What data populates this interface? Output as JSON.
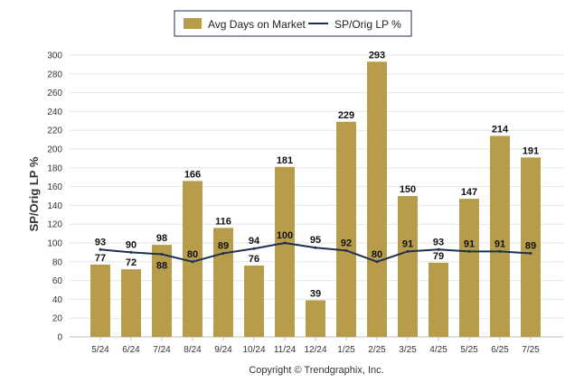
{
  "chart_data": {
    "type": "bar",
    "categories": [
      "5/24",
      "6/24",
      "7/24",
      "8/24",
      "9/24",
      "10/24",
      "11/24",
      "12/24",
      "1/25",
      "2/25",
      "3/25",
      "4/25",
      "5/25",
      "6/25",
      "7/25"
    ],
    "series": [
      {
        "name": "Avg Days on Market",
        "type": "bar",
        "color": "#b79c4c",
        "values": [
          77,
          72,
          98,
          166,
          116,
          76,
          181,
          39,
          229,
          293,
          150,
          79,
          147,
          214,
          191
        ]
      },
      {
        "name": "SP/Orig LP %",
        "type": "line",
        "color": "#1f2f4f",
        "values": [
          93,
          90,
          88,
          80,
          89,
          94,
          100,
          95,
          92,
          80,
          91,
          93,
          91,
          91,
          89
        ]
      }
    ],
    "ylabel": "SP/Orig LP %",
    "ylim": [
      0,
      300
    ],
    "yticks": [
      0,
      20,
      40,
      60,
      80,
      100,
      120,
      140,
      160,
      180,
      200,
      220,
      240,
      260,
      280,
      300
    ],
    "grid": true,
    "legend": "top-center"
  },
  "footer": {
    "copyright": "Copyright © Trendgraphix, Inc."
  }
}
